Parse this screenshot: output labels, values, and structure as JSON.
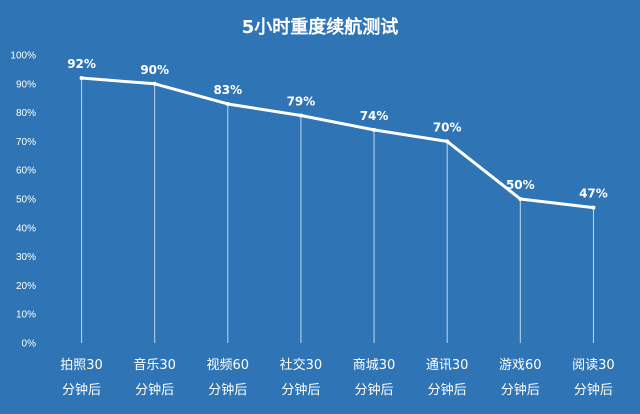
{
  "chart_data": {
    "type": "line",
    "title": "5小时重度续航测试",
    "categories": [
      [
        "拍照30",
        "分钟后"
      ],
      [
        "音乐30",
        "分钟后"
      ],
      [
        "视频60",
        "分钟后"
      ],
      [
        "社交30",
        "分钟后"
      ],
      [
        "商城30",
        "分钟后"
      ],
      [
        "通讯30",
        "分钟后"
      ],
      [
        "游戏60",
        "分钟后"
      ],
      [
        "阅读30",
        "分钟后"
      ]
    ],
    "values": [
      92,
      90,
      83,
      79,
      74,
      70,
      50,
      47
    ],
    "data_labels": [
      "92%",
      "90%",
      "83%",
      "79%",
      "74%",
      "70%",
      "50%",
      "47%"
    ],
    "y_ticks": [
      "0%",
      "10%",
      "20%",
      "30%",
      "40%",
      "50%",
      "60%",
      "70%",
      "80%",
      "90%",
      "100%"
    ],
    "ylim": [
      0,
      100
    ],
    "grid": false,
    "drop_lines": true,
    "xlabel": "",
    "ylabel": "",
    "colors": {
      "background": "#2f75b6",
      "line": "#ffffff",
      "drop_line": "#dbe7f5",
      "text": "#ffffff"
    }
  }
}
